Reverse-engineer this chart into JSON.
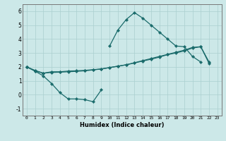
{
  "xlabel": "Humidex (Indice chaleur)",
  "background_color": "#cce8e8",
  "grid_color": "#aacfcf",
  "line_color": "#1a6b6b",
  "x_values": [
    0,
    1,
    2,
    3,
    4,
    5,
    6,
    7,
    8,
    9,
    10,
    11,
    12,
    13,
    14,
    15,
    16,
    17,
    18,
    19,
    20,
    21,
    22,
    23
  ],
  "line1": [
    2.0,
    1.7,
    1.35,
    0.8,
    0.15,
    -0.3,
    -0.3,
    -0.35,
    -0.5,
    0.35,
    null,
    null,
    null,
    null,
    null,
    null,
    null,
    null,
    null,
    null,
    null,
    null,
    null,
    null
  ],
  "line2": [
    2.0,
    null,
    null,
    null,
    null,
    null,
    null,
    null,
    null,
    null,
    3.5,
    4.65,
    5.4,
    5.9,
    5.5,
    5.0,
    4.5,
    4.0,
    3.5,
    3.45,
    2.75,
    2.35,
    null,
    null
  ],
  "line3": [
    2.0,
    1.75,
    1.55,
    1.65,
    1.65,
    1.7,
    1.72,
    1.75,
    1.8,
    1.85,
    1.95,
    2.05,
    2.15,
    2.3,
    2.45,
    2.6,
    2.75,
    2.9,
    3.05,
    3.2,
    3.4,
    3.45,
    2.35,
    null
  ],
  "line4": [
    2.0,
    1.7,
    1.55,
    1.6,
    1.62,
    1.65,
    1.68,
    1.72,
    1.78,
    1.85,
    1.95,
    2.05,
    2.15,
    2.28,
    2.42,
    2.55,
    2.7,
    2.88,
    3.0,
    3.15,
    3.35,
    3.45,
    2.25,
    null
  ],
  "ylim": [
    -1.5,
    6.5
  ],
  "xlim": [
    -0.5,
    23.5
  ],
  "yticks": [
    -1,
    0,
    1,
    2,
    3,
    4,
    5,
    6
  ],
  "xticks": [
    0,
    1,
    2,
    3,
    4,
    5,
    6,
    7,
    8,
    9,
    10,
    11,
    12,
    13,
    14,
    15,
    16,
    17,
    18,
    19,
    20,
    21,
    22,
    23
  ]
}
